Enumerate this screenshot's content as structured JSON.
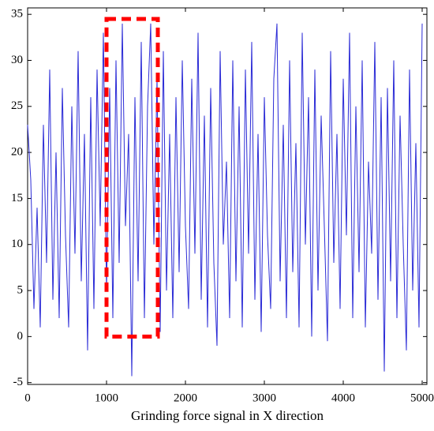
{
  "chart_data": {
    "type": "line",
    "x_label": "Grinding force signal in X direction",
    "x": [
      0,
      40,
      80,
      120,
      160,
      200,
      240,
      280,
      320,
      360,
      400,
      440,
      480,
      520,
      560,
      600,
      640,
      680,
      720,
      760,
      800,
      840,
      880,
      920,
      960,
      1000,
      1040,
      1080,
      1120,
      1160,
      1200,
      1240,
      1280,
      1320,
      1360,
      1400,
      1440,
      1480,
      1520,
      1560,
      1600,
      1640,
      1680,
      1720,
      1760,
      1800,
      1840,
      1880,
      1920,
      1960,
      2000,
      2040,
      2080,
      2120,
      2160,
      2200,
      2240,
      2280,
      2320,
      2360,
      2400,
      2440,
      2480,
      2520,
      2560,
      2600,
      2640,
      2680,
      2720,
      2760,
      2800,
      2840,
      2880,
      2920,
      2960,
      3000,
      3040,
      3080,
      3120,
      3160,
      3200,
      3240,
      3280,
      3320,
      3360,
      3400,
      3440,
      3480,
      3520,
      3560,
      3600,
      3640,
      3680,
      3720,
      3760,
      3800,
      3840,
      3880,
      3920,
      3960,
      4000,
      4040,
      4080,
      4120,
      4160,
      4200,
      4240,
      4280,
      4320,
      4360,
      4400,
      4440,
      4480,
      4520,
      4560,
      4600,
      4640,
      4680,
      4720,
      4760,
      4800,
      4840,
      4880,
      4920,
      4960,
      5000
    ],
    "series": [
      {
        "color": "#2b2bd6",
        "values": [
          23,
          17,
          3,
          14,
          1,
          23,
          8,
          29,
          4,
          20,
          2,
          27,
          11,
          1,
          25,
          9,
          31,
          6,
          22,
          -1.5,
          26,
          3,
          29,
          12,
          33,
          5,
          27,
          2,
          30,
          8,
          34,
          12,
          22,
          -4.3,
          26,
          6,
          32,
          2,
          25,
          34,
          10,
          28,
          0.5,
          31,
          5,
          22,
          2,
          26,
          7,
          30,
          12,
          3,
          28,
          9,
          33,
          4,
          24,
          1,
          27,
          8,
          -1,
          31,
          10,
          19,
          2,
          30,
          6,
          25,
          1,
          29,
          9,
          32,
          4,
          22,
          0.5,
          26,
          11,
          3,
          28,
          34,
          6,
          23,
          2,
          30,
          7,
          21,
          1,
          33,
          10,
          26,
          0,
          29,
          5,
          24,
          12,
          -0.5,
          31,
          8,
          22,
          3,
          28,
          11,
          33,
          2,
          25,
          7,
          30,
          1,
          19,
          9,
          32,
          4,
          26,
          -3.8,
          27,
          6,
          30,
          2,
          24,
          10,
          -1.5,
          29,
          5,
          21,
          1,
          34
        ]
      }
    ],
    "highlight_box": {
      "x": [
        1000,
        1650
      ],
      "y": [
        0,
        34.5
      ],
      "color": "#ff0000"
    },
    "xlim": [
      0,
      5060
    ],
    "ylim": [
      -5.2,
      35.7
    ],
    "xticks": [
      0,
      1000,
      2000,
      3000,
      4000,
      5000
    ],
    "yticks": [
      -5,
      0,
      5,
      10,
      15,
      20,
      25,
      30,
      35
    ]
  }
}
